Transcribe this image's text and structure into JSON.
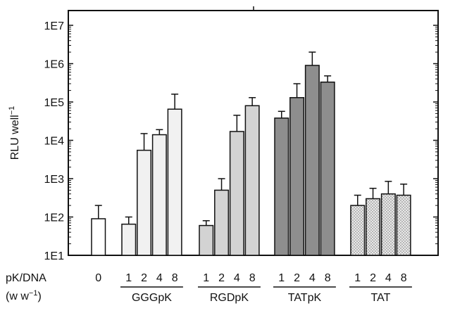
{
  "chart_data": {
    "type": "bar",
    "y_scale": "log",
    "ylabel_main": "RLU well",
    "ylabel_sup": "−1",
    "ylim": [
      10,
      10000000
    ],
    "y_ticks": [
      {
        "value": 10,
        "base": "1E",
        "exp": "1"
      },
      {
        "value": 100,
        "base": "1E",
        "exp": "2"
      },
      {
        "value": 1000,
        "base": "1E",
        "exp": "3"
      },
      {
        "value": 10000,
        "base": "1E",
        "exp": "4"
      },
      {
        "value": 100000,
        "base": "1E",
        "exp": "5"
      },
      {
        "value": 1000000,
        "base": "1E",
        "exp": "6"
      },
      {
        "value": 10000000,
        "base": "1E",
        "exp": "7"
      }
    ],
    "x_row_label_line1": "pK/DNA",
    "x_row_label_line2": "(w w",
    "x_row_label_sup": "−1",
    "x_row_label_close": ")",
    "groups": [
      {
        "name": "",
        "fill": "white",
        "bars": [
          {
            "label": "0",
            "value": 90,
            "error_top": 200
          }
        ]
      },
      {
        "name": "GGGpK",
        "fill": "lightgray",
        "bars": [
          {
            "label": "1",
            "value": 65,
            "error_top": 100
          },
          {
            "label": "2",
            "value": 5500,
            "error_top": 15000
          },
          {
            "label": "4",
            "value": 14000,
            "error_top": 19000
          },
          {
            "label": "8",
            "value": 65000,
            "error_top": 160000
          }
        ]
      },
      {
        "name": "RGDpK",
        "fill": "midgray",
        "bars": [
          {
            "label": "1",
            "value": 60,
            "error_top": 80
          },
          {
            "label": "2",
            "value": 500,
            "error_top": 1000
          },
          {
            "label": "4",
            "value": 17000,
            "error_top": 45000
          },
          {
            "label": "8",
            "value": 80000,
            "error_top": 130000
          }
        ]
      },
      {
        "name": "TATpK",
        "fill": "darkgray",
        "bars": [
          {
            "label": "1",
            "value": 38000,
            "error_top": 57000
          },
          {
            "label": "2",
            "value": 130000,
            "error_top": 300000
          },
          {
            "label": "4",
            "value": 900000,
            "error_top": 2000000
          },
          {
            "label": "8",
            "value": 330000,
            "error_top": 480000
          }
        ]
      },
      {
        "name": "TAT",
        "fill": "dotted",
        "bars": [
          {
            "label": "1",
            "value": 200,
            "error_top": 370
          },
          {
            "label": "2",
            "value": 300,
            "error_top": 560
          },
          {
            "label": "4",
            "value": 400,
            "error_top": 850
          },
          {
            "label": "8",
            "value": 370,
            "error_top": 720
          }
        ]
      }
    ],
    "colors": {
      "white": "#ffffff",
      "lightgray": "#f1f1f1",
      "midgray": "#d3d3d3",
      "darkgray": "#8e8e8e",
      "dotted_bg": "#e9e9e9",
      "dotted_dot": "#7a7a7a",
      "axis": "#111111"
    },
    "grid": false,
    "legend": "none"
  }
}
